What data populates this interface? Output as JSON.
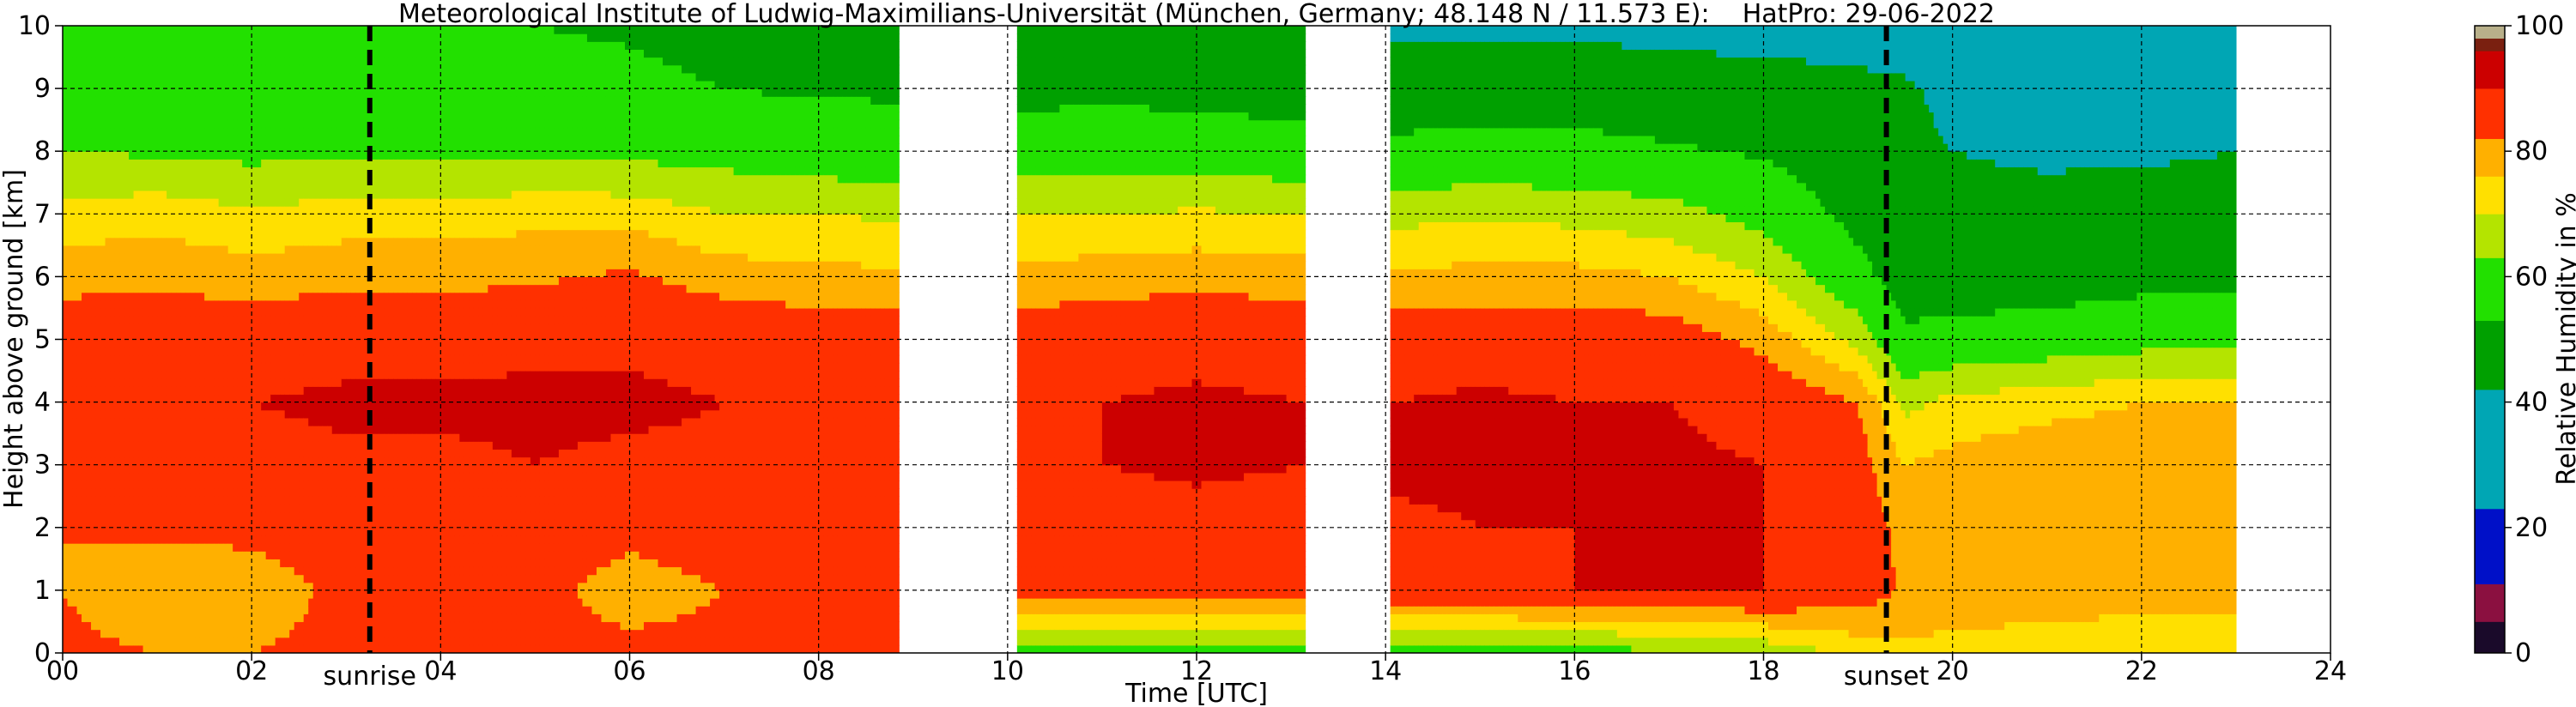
{
  "chart_data": {
    "type": "heatmap",
    "title": "Meteorological Institute of Ludwig-Maximilians-Universität (München, Germany; 48.148 N / 11.573 E):    HatPro: 29-06-2022",
    "xlabel": "Time [UTC]",
    "ylabel": "Height above ground [km]",
    "colorbar_label": "Relative Humidity in %",
    "xlim": [
      0,
      24
    ],
    "ylim": [
      0,
      10
    ],
    "clim": [
      0,
      100
    ],
    "grid": true,
    "x_ticks": [
      "00",
      "02",
      "04",
      "06",
      "08",
      "10",
      "12",
      "14",
      "16",
      "18",
      "20",
      "22",
      "24"
    ],
    "y_ticks": [
      "0",
      "1",
      "2",
      "3",
      "4",
      "5",
      "6",
      "7",
      "8",
      "9",
      "10"
    ],
    "colorbar_ticks": [
      "0",
      "20",
      "40",
      "60",
      "80",
      "100"
    ],
    "colorscale": [
      {
        "from": 0,
        "to": 5,
        "color": "#1a0a2a"
      },
      {
        "from": 5,
        "to": 11,
        "color": "#8b1040"
      },
      {
        "from": 11,
        "to": 23,
        "color": "#0010c8"
      },
      {
        "from": 23,
        "to": 42,
        "color": "#00a6b4"
      },
      {
        "from": 42,
        "to": 53,
        "color": "#00a000"
      },
      {
        "from": 53,
        "to": 63,
        "color": "#22e000"
      },
      {
        "from": 63,
        "to": 70,
        "color": "#b4e400"
      },
      {
        "from": 70,
        "to": 76,
        "color": "#ffe000"
      },
      {
        "from": 76,
        "to": 82,
        "color": "#ffb000"
      },
      {
        "from": 82,
        "to": 90,
        "color": "#ff3000"
      },
      {
        "from": 90,
        "to": 96,
        "color": "#cc0000"
      },
      {
        "from": 96,
        "to": 98,
        "color": "#7a2010"
      },
      {
        "from": 98,
        "to": 100,
        "color": "#b8b08a"
      }
    ],
    "data_gaps_utc": [
      [
        8.85,
        10.1
      ],
      [
        13.15,
        14.05
      ],
      [
        23.0,
        24.0
      ]
    ],
    "humidity_profiles": [
      {
        "time": 0.0,
        "rh": [
          84,
          82,
          82,
          87,
          89,
          86,
          80,
          72,
          63,
          58,
          55
        ]
      },
      {
        "time": 1.0,
        "rh": [
          82,
          76,
          84,
          88,
          90,
          88,
          80,
          74,
          62,
          57,
          54
        ]
      },
      {
        "time": 2.0,
        "rh": [
          82,
          78,
          84,
          88,
          90,
          87,
          79,
          71,
          61,
          56,
          54
        ]
      },
      {
        "time": 3.0,
        "rh": [
          84,
          84,
          86,
          89,
          91,
          88,
          80,
          73,
          62,
          57,
          55
        ]
      },
      {
        "time": 4.0,
        "rh": [
          84,
          83,
          86,
          89,
          91,
          88,
          80,
          73,
          61,
          56,
          53
        ]
      },
      {
        "time": 5.0,
        "rh": [
          84,
          84,
          86,
          90,
          91,
          89,
          81,
          74,
          62,
          56,
          53
        ]
      },
      {
        "time": 6.0,
        "rh": [
          84,
          79,
          84,
          89,
          91,
          89,
          83,
          74,
          61,
          55,
          52
        ]
      },
      {
        "time": 7.0,
        "rh": [
          84,
          82,
          86,
          89,
          90,
          88,
          79,
          70,
          60,
          53,
          50
        ]
      },
      {
        "time": 8.0,
        "rh": [
          84,
          85,
          87,
          89,
          89,
          86,
          78,
          70,
          58,
          52,
          50
        ]
      },
      {
        "time": 8.85,
        "rh": [
          84,
          85,
          87,
          88,
          89,
          86,
          77,
          69,
          57,
          52,
          49
        ]
      },
      {
        "time": 10.1,
        "rh": [
          60,
          84,
          86,
          89,
          89,
          86,
          78,
          70,
          58,
          50,
          45
        ]
      },
      {
        "time": 11.0,
        "rh": [
          60,
          85,
          87,
          90,
          90,
          87,
          79,
          70,
          59,
          51,
          44
        ]
      },
      {
        "time": 12.0,
        "rh": [
          60,
          86,
          88,
          91,
          91,
          88,
          80,
          71,
          58,
          50,
          44
        ]
      },
      {
        "time": 13.15,
        "rh": [
          60,
          85,
          87,
          90,
          90,
          87,
          79,
          70,
          57,
          49,
          43
        ]
      },
      {
        "time": 14.05,
        "rh": [
          58,
          88,
          89,
          91,
          90,
          86,
          77,
          68,
          55,
          48,
          40
        ]
      },
      {
        "time": 15.0,
        "rh": [
          58,
          89,
          90,
          91,
          91,
          87,
          78,
          69,
          56,
          48,
          40
        ]
      },
      {
        "time": 16.0,
        "rh": [
          60,
          90,
          90,
          91,
          90,
          87,
          78,
          68,
          56,
          48,
          40
        ]
      },
      {
        "time": 17.0,
        "rh": [
          62,
          90,
          90,
          91,
          90,
          86,
          76,
          66,
          54,
          47,
          39
        ]
      },
      {
        "time": 18.0,
        "rh": [
          65,
          90,
          90,
          90,
          88,
          80,
          70,
          60,
          52,
          46,
          38
        ]
      },
      {
        "time": 19.0,
        "rh": [
          72,
          86,
          86,
          85,
          82,
          68,
          56,
          50,
          47,
          44,
          38
        ]
      },
      {
        "time": 19.5,
        "rh": [
          74,
          81,
          80,
          76,
          68,
          55,
          48,
          45,
          44,
          43,
          38
        ]
      },
      {
        "time": 20.0,
        "rh": [
          74,
          80,
          80,
          78,
          72,
          56,
          48,
          44,
          42,
          40,
          38
        ]
      },
      {
        "time": 21.0,
        "rh": [
          72,
          80,
          81,
          80,
          74,
          58,
          48,
          44,
          41,
          40,
          40
        ]
      },
      {
        "time": 22.0,
        "rh": [
          70,
          80,
          82,
          81,
          76,
          60,
          50,
          45,
          41,
          40,
          41
        ]
      },
      {
        "time": 23.0,
        "rh": [
          70,
          80,
          82,
          81,
          76,
          60,
          50,
          45,
          42,
          41,
          42
        ]
      }
    ],
    "markers": [
      {
        "label": "sunrise",
        "time": 3.25
      },
      {
        "label": "sunset",
        "time": 19.3
      }
    ]
  }
}
